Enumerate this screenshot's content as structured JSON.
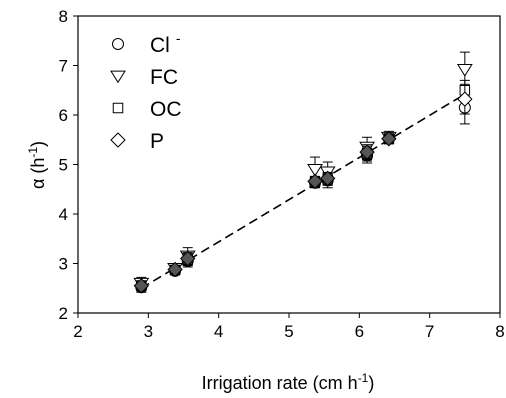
{
  "chart_data": {
    "type": "scatter",
    "xlabel": {
      "base": "Irrigation rate (cm h",
      "sup": "-1",
      "close": ")"
    },
    "ylabel": {
      "base": "α (h",
      "sup": "-1",
      "close": ")"
    },
    "xlim": [
      2,
      8
    ],
    "ylim": [
      2,
      8
    ],
    "xticks": [
      "2",
      "3",
      "4",
      "5",
      "6",
      "7",
      "8"
    ],
    "yticks": [
      "2",
      "3",
      "4",
      "5",
      "6",
      "7",
      "8"
    ],
    "grid": false,
    "legend_position": "top-left",
    "fit_line": {
      "style": "dashed",
      "x": [
        2.9,
        7.5
      ],
      "y": [
        2.5,
        6.42
      ]
    },
    "series": [
      {
        "name": "Cl",
        "sup": "-",
        "marker": "circle",
        "x": [
          2.9,
          3.38,
          3.56,
          5.37,
          5.55,
          6.11,
          6.42,
          7.5
        ],
        "y": [
          2.52,
          2.85,
          3.05,
          4.63,
          4.68,
          5.18,
          5.52,
          6.15
        ],
        "err": [
          0.1,
          0.08,
          0.12,
          0.1,
          0.15,
          0.15,
          0.1,
          0.33
        ]
      },
      {
        "name": "FC",
        "marker": "triangle-down",
        "x": [
          2.9,
          3.38,
          3.56,
          5.37,
          5.55,
          6.11,
          6.42,
          7.5
        ],
        "y": [
          2.6,
          2.9,
          3.15,
          4.9,
          4.85,
          5.35,
          5.55,
          6.92
        ],
        "err": [
          0.12,
          0.08,
          0.17,
          0.25,
          0.2,
          0.2,
          0.12,
          0.35
        ]
      },
      {
        "name": "OC",
        "marker": "square",
        "x": [
          2.9,
          3.38,
          3.56,
          5.37,
          5.55,
          6.11,
          6.42,
          7.5
        ],
        "y": [
          2.55,
          2.87,
          3.08,
          4.65,
          4.7,
          5.22,
          5.52,
          6.5
        ],
        "err": [
          0.1,
          0.08,
          0.12,
          0.1,
          0.12,
          0.15,
          0.1,
          0.2
        ]
      },
      {
        "name": "P",
        "marker": "diamond",
        "x": [
          2.9,
          3.38,
          3.56,
          5.37,
          5.55,
          6.11,
          6.42,
          7.5
        ],
        "y": [
          2.55,
          2.88,
          3.1,
          4.66,
          4.72,
          5.25,
          5.52,
          6.32
        ],
        "err": [
          0.1,
          0.08,
          0.12,
          0.1,
          0.12,
          0.15,
          0.1,
          0.3
        ]
      }
    ]
  }
}
